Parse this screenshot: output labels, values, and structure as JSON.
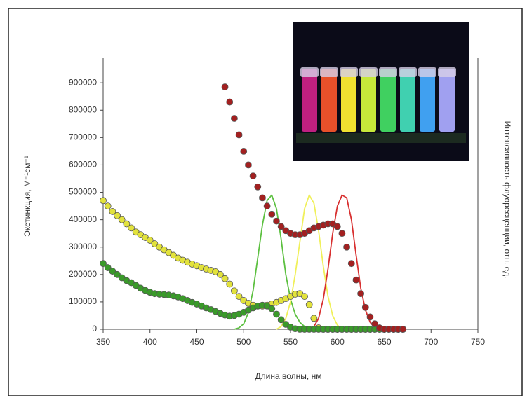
{
  "chart_data": {
    "type": "scatter",
    "xlabel": "Длина волны, нм",
    "ylabel": "Экстинкция, М⁻¹см⁻¹",
    "y2label": "Интенсивность флуоресценции, отн. ед.",
    "xlim": [
      350,
      750
    ],
    "xticks": [
      350,
      400,
      450,
      500,
      550,
      600,
      650,
      700,
      750
    ],
    "ylim": [
      0,
      990000
    ],
    "yticks": [
      0,
      100000,
      200000,
      300000,
      400000,
      500000,
      600000,
      700000,
      800000,
      900000
    ],
    "series": [
      {
        "mode": "markers",
        "color": "#e2e23c",
        "x": [
          350,
          355,
          360,
          365,
          370,
          375,
          380,
          385,
          390,
          395,
          400,
          405,
          410,
          415,
          420,
          425,
          430,
          435,
          440,
          445,
          450,
          455,
          460,
          465,
          470,
          475,
          480,
          485,
          490,
          495,
          500,
          505,
          510,
          515,
          520,
          525,
          530,
          535,
          540,
          545,
          550,
          555,
          560,
          565,
          570,
          575,
          580,
          585,
          590,
          595,
          600,
          605,
          610,
          615,
          620,
          625,
          630,
          635,
          640,
          645,
          650,
          655,
          660,
          665,
          670
        ],
        "values": [
          470000,
          450000,
          430000,
          415000,
          400000,
          385000,
          370000,
          355000,
          345000,
          335000,
          325000,
          312000,
          300000,
          290000,
          280000,
          270000,
          260000,
          252000,
          245000,
          238000,
          232000,
          225000,
          220000,
          215000,
          210000,
          200000,
          185000,
          165000,
          140000,
          120000,
          105000,
          95000,
          88000,
          85000,
          85000,
          88000,
          92000,
          98000,
          105000,
          112000,
          120000,
          128000,
          130000,
          120000,
          90000,
          40000,
          5000,
          0,
          0,
          0,
          0,
          0,
          0,
          0,
          0,
          0,
          0,
          0,
          0,
          0,
          0,
          0,
          0,
          0,
          0
        ]
      },
      {
        "mode": "markers",
        "color": "#3a9a2a",
        "x": [
          350,
          355,
          360,
          365,
          370,
          375,
          380,
          385,
          390,
          395,
          400,
          405,
          410,
          415,
          420,
          425,
          430,
          435,
          440,
          445,
          450,
          455,
          460,
          465,
          470,
          475,
          480,
          485,
          490,
          495,
          500,
          505,
          510,
          515,
          520,
          525,
          530,
          535,
          540,
          545,
          550,
          555,
          560,
          565,
          570,
          575,
          580,
          585,
          590,
          595,
          600,
          605,
          610,
          615,
          620,
          625,
          630,
          635,
          640,
          645,
          650,
          655,
          660,
          665,
          670
        ],
        "values": [
          240000,
          225000,
          212000,
          200000,
          188000,
          178000,
          170000,
          160000,
          150000,
          142000,
          135000,
          130000,
          128000,
          127000,
          125000,
          122000,
          118000,
          112000,
          105000,
          98000,
          92000,
          85000,
          78000,
          72000,
          65000,
          58000,
          52000,
          48000,
          50000,
          55000,
          62000,
          70000,
          78000,
          85000,
          88000,
          85000,
          75000,
          55000,
          35000,
          18000,
          8000,
          2000,
          0,
          0,
          0,
          0,
          0,
          0,
          0,
          0,
          0,
          0,
          0,
          0,
          0,
          0,
          0,
          0,
          0,
          0,
          0,
          0,
          0,
          0,
          0
        ]
      },
      {
        "mode": "markers",
        "color": "#a32020",
        "x": [
          480,
          485,
          490,
          495,
          500,
          505,
          510,
          515,
          520,
          525,
          530,
          535,
          540,
          545,
          550,
          555,
          560,
          565,
          570,
          575,
          580,
          585,
          590,
          595,
          600,
          605,
          610,
          615,
          620,
          625,
          630,
          635,
          640,
          645,
          650,
          655,
          660,
          665,
          670
        ],
        "values": [
          885000,
          830000,
          770000,
          710000,
          650000,
          600000,
          560000,
          520000,
          480000,
          450000,
          420000,
          395000,
          375000,
          360000,
          350000,
          345000,
          345000,
          350000,
          360000,
          370000,
          375000,
          380000,
          385000,
          385000,
          375000,
          350000,
          300000,
          240000,
          180000,
          130000,
          80000,
          45000,
          20000,
          5000,
          0,
          0,
          0,
          0,
          0
        ]
      },
      {
        "mode": "line",
        "color": "#5cc040",
        "x": [
          490,
          495,
          500,
          505,
          510,
          515,
          520,
          525,
          530,
          535,
          540,
          545,
          550,
          555,
          560,
          565,
          570,
          575
        ],
        "values": [
          0,
          5000,
          20000,
          60000,
          140000,
          260000,
          380000,
          470000,
          490000,
          440000,
          330000,
          200000,
          110000,
          55000,
          25000,
          10000,
          3000,
          0
        ]
      },
      {
        "mode": "line",
        "color": "#f0f05a",
        "x": [
          535,
          540,
          545,
          550,
          555,
          560,
          565,
          570,
          575,
          580,
          585,
          590,
          595,
          600,
          605
        ],
        "values": [
          0,
          10000,
          40000,
          100000,
          200000,
          320000,
          440000,
          490000,
          460000,
          360000,
          230000,
          120000,
          50000,
          15000,
          0
        ]
      },
      {
        "mode": "line",
        "color": "#d83030",
        "x": [
          570,
          575,
          580,
          585,
          590,
          595,
          600,
          605,
          610,
          615,
          620,
          625,
          630,
          635,
          640,
          645
        ],
        "values": [
          0,
          10000,
          40000,
          110000,
          220000,
          350000,
          450000,
          490000,
          480000,
          400000,
          270000,
          150000,
          70000,
          25000,
          5000,
          0
        ]
      }
    ]
  }
}
